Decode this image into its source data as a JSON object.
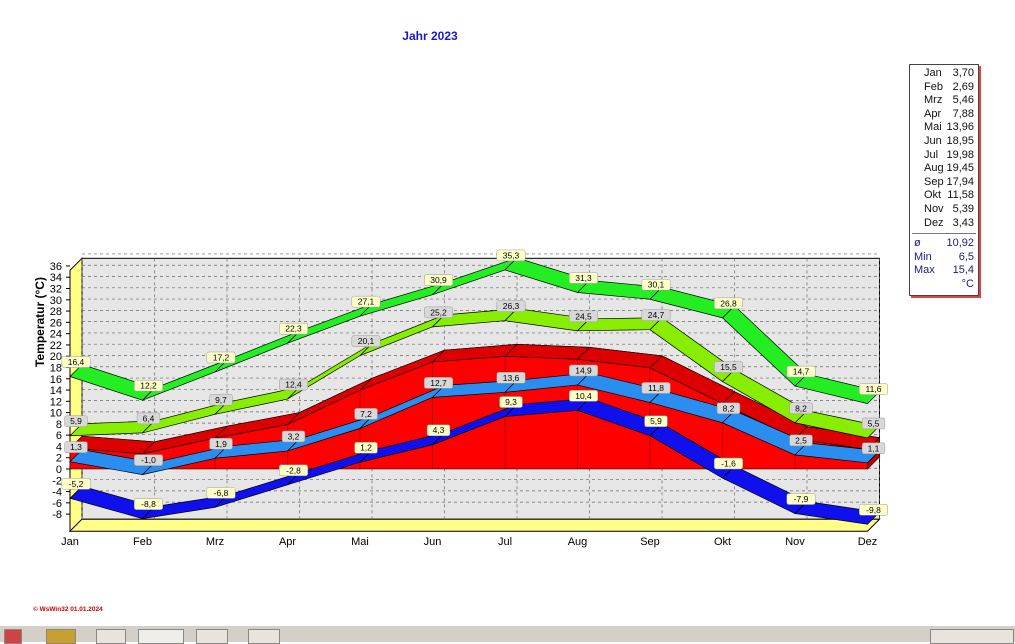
{
  "chart_data": {
    "type": "line",
    "title": "Jahr  2023",
    "ylabel": "Temperatur  (°C)",
    "xlabel": "",
    "categories": [
      "Jan",
      "Feb",
      "Mrz",
      "Apr",
      "Mai",
      "Jun",
      "Jul",
      "Aug",
      "Sep",
      "Okt",
      "Nov",
      "Dez"
    ],
    "ylim": [
      -8,
      36
    ],
    "yticks": [
      -8,
      -6,
      -4,
      -2,
      0,
      2,
      4,
      6,
      8,
      10,
      12,
      14,
      16,
      18,
      20,
      22,
      24,
      26,
      28,
      30,
      32,
      34,
      36
    ],
    "grid": true,
    "series": [
      {
        "values": [
          16.4,
          12.2,
          17.2,
          22.3,
          27.1,
          30.9,
          35.3,
          31.3,
          30.1,
          26.8,
          14.7,
          11.6
        ],
        "labels": [
          "16,4",
          "12,2",
          "17,2",
          "22,3",
          "27,1",
          "30,9",
          "35,3",
          "31,3",
          "30,1",
          "26,8",
          "14,7",
          "11,6"
        ],
        "color": "#22ee22",
        "bandUp": 12
      },
      {
        "values": [
          5.9,
          6.4,
          9.7,
          12.4,
          20.1,
          25.2,
          26.3,
          24.5,
          24.7,
          15.5,
          8.2,
          5.5
        ],
        "labels": [
          "5,9",
          "6,4",
          "9,7",
          "12,4",
          "20,1",
          "25,2",
          "26,3",
          "24,5",
          "24,7",
          "15,5",
          "8,2",
          "5,5"
        ],
        "color": "#88ee00",
        "bandUp": 12
      },
      {
        "values": [
          1.3,
          -1.0,
          1.9,
          3.2,
          7.2,
          12.7,
          13.6,
          14.9,
          11.8,
          8.2,
          2.5,
          1.1
        ],
        "labels": [
          "1,3",
          "-1,0",
          "1,9",
          "3,2",
          "7,2",
          "12,7",
          "13,6",
          "14,9",
          "11,8",
          "8,2",
          "2,5",
          "1,1"
        ],
        "color": "#2a8ef0",
        "bandUp": 12
      },
      {
        "values": [
          -5.2,
          -8.8,
          -6.8,
          -2.8,
          1.2,
          4.3,
          9.3,
          10.4,
          5.9,
          -1.6,
          -7.9,
          -9.8
        ],
        "labels": [
          "-5,2",
          "-8,8",
          "-6,8",
          "-2,8",
          "1,2",
          "4,3",
          "9,3",
          "10,4",
          "5,9",
          "-1,6",
          "-7,9",
          "-9,8"
        ],
        "color": "#1010ee",
        "bandUp": 12
      }
    ],
    "area_series": {
      "values": [
        3.7,
        2.69,
        5.46,
        7.88,
        13.96,
        18.95,
        19.98,
        19.45,
        17.94,
        11.58,
        5.39,
        3.43
      ],
      "color": "#ee0000"
    }
  },
  "legend": {
    "months": [
      {
        "label": "Jan",
        "value": "3,70"
      },
      {
        "label": "Feb",
        "value": "2,69"
      },
      {
        "label": "Mrz",
        "value": "5,46"
      },
      {
        "label": "Apr",
        "value": "7,88"
      },
      {
        "label": "Mai",
        "value": "13,96"
      },
      {
        "label": "Jun",
        "value": "18,95"
      },
      {
        "label": "Jul",
        "value": "19,98"
      },
      {
        "label": "Aug",
        "value": "19,45"
      },
      {
        "label": "Sep",
        "value": "17,94"
      },
      {
        "label": "Okt",
        "value": "11,58"
      },
      {
        "label": "Nov",
        "value": "5,39"
      },
      {
        "label": "Dez",
        "value": "3,43"
      }
    ],
    "stats": [
      {
        "label": "ø",
        "value": "10,92"
      },
      {
        "label": "Min",
        "value": "6,5"
      },
      {
        "label": "Max",
        "value": "15,4"
      }
    ],
    "unit": "°C"
  },
  "footer": {
    "credit": "© WsWin32  01.01.2024"
  }
}
